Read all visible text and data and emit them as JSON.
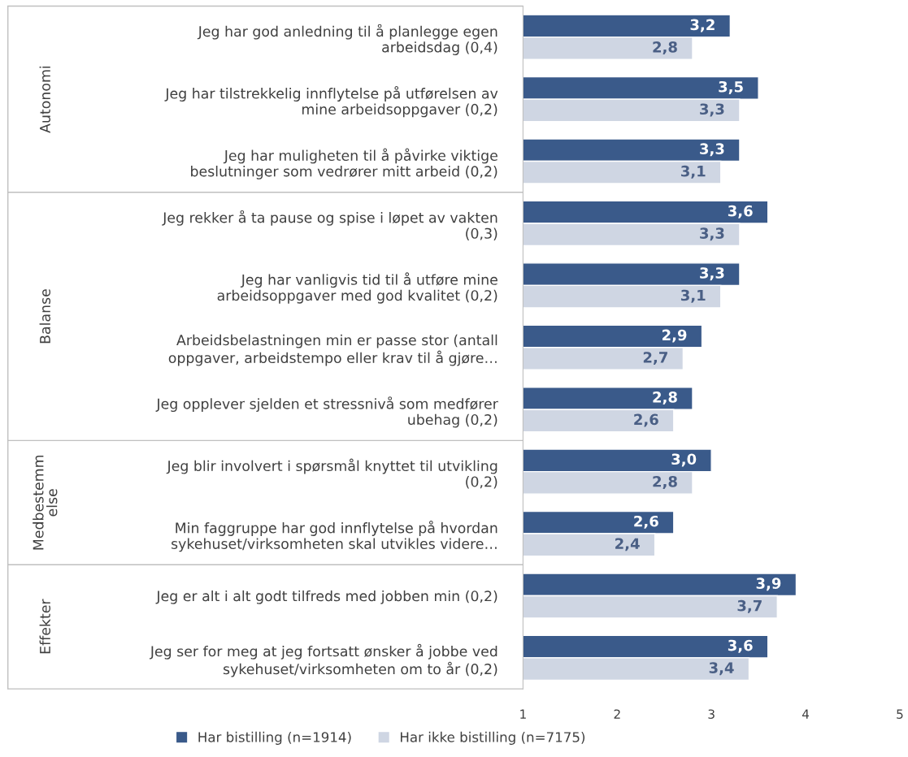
{
  "chart_data": {
    "type": "bar",
    "orientation": "horizontal",
    "categories": [
      "Jeg har god anledning til å planlegge egen\narbeidsdag (0,4)",
      "Jeg har tilstrekkelig innflytelse på utførelsen av\nmine arbeidsoppgaver (0,2)",
      "Jeg har muligheten til å påvirke viktige\nbeslutninger som vedrører mitt arbeid (0,2)",
      "Jeg rekker å ta pause og spise i løpet av vakten\n(0,3)",
      "Jeg har vanligvis tid til å utføre mine\narbeidsoppgaver med god kvalitet (0,2)",
      "Arbeidsbelastningen min er passe stor (antall\noppgaver, arbeidstempo eller krav til å gjøre…",
      "Jeg opplever sjelden et stressnivå som medfører\nubehag (0,2)",
      "Jeg blir involvert i spørsmål knyttet til utvikling\n(0,2)",
      "Min faggruppe har god innflytelse på hvordan\nsykehuset/virksomheten skal utvikles videre…",
      "Jeg er alt i alt godt tilfreds med jobben min (0,2)",
      "Jeg ser for meg at jeg fortsatt ønsker å jobbe ved\nsykehuset/virksomheten om to år (0,2)"
    ],
    "series": [
      {
        "name": "Har bistilling (n=1914)",
        "color": "#3a5a8a",
        "values": [
          3.2,
          3.5,
          3.3,
          3.6,
          3.3,
          2.9,
          2.8,
          3.0,
          2.6,
          3.9,
          3.6
        ],
        "value_labels": [
          "3,2",
          "3,5",
          "3,3",
          "3,6",
          "3,3",
          "2,9",
          "2,8",
          "3,0",
          "2,6",
          "3,9",
          "3,6"
        ]
      },
      {
        "name": "Har ikke bistilling (n=7175)",
        "color": "#cfd6e3",
        "values": [
          2.8,
          3.3,
          3.1,
          3.3,
          3.1,
          2.7,
          2.6,
          2.8,
          2.4,
          3.7,
          3.4
        ],
        "value_labels": [
          "2,8",
          "3,3",
          "3,1",
          "3,3",
          "3,1",
          "2,7",
          "2,6",
          "2,8",
          "2,4",
          "3,7",
          "3,4"
        ]
      }
    ],
    "xlim": [
      1,
      5
    ],
    "xticks": [
      1,
      2,
      3,
      4,
      5
    ],
    "grid": false,
    "legend": "bottom",
    "annotations": [
      "Autonomi",
      "Balanse",
      "Medbestemm\nelse",
      "Effekter"
    ]
  }
}
